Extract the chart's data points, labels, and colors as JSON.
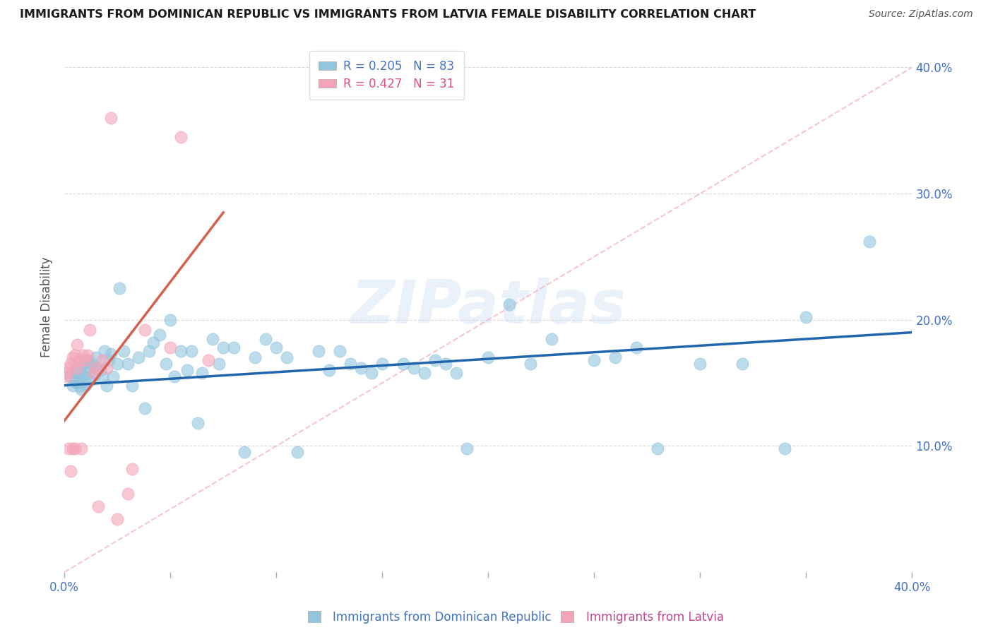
{
  "title": "IMMIGRANTS FROM DOMINICAN REPUBLIC VS IMMIGRANTS FROM LATVIA FEMALE DISABILITY CORRELATION CHART",
  "source": "Source: ZipAtlas.com",
  "ylabel": "Female Disability",
  "xlim": [
    0.0,
    0.4
  ],
  "ylim": [
    0.0,
    0.42
  ],
  "blue_color": "#92c5de",
  "pink_color": "#f4a4b8",
  "blue_line_color": "#2166ac",
  "pink_line_color": "#d6604d",
  "diag_line_color": "#f4b8c0",
  "r_blue": 0.205,
  "n_blue": 83,
  "r_pink": 0.427,
  "n_pink": 31,
  "legend_label_blue": "Immigrants from Dominican Republic",
  "legend_label_pink": "Immigrants from Latvia",
  "legend_R_blue_color": "#4472c4",
  "legend_N_blue_color": "#e05858",
  "legend_R_pink_color": "#e05080",
  "legend_N_pink_color": "#e05858",
  "blue_scatter_x": [
    0.003,
    0.004,
    0.005,
    0.005,
    0.006,
    0.006,
    0.007,
    0.007,
    0.008,
    0.008,
    0.009,
    0.009,
    0.01,
    0.01,
    0.011,
    0.012,
    0.012,
    0.013,
    0.014,
    0.015,
    0.016,
    0.017,
    0.018,
    0.019,
    0.02,
    0.021,
    0.022,
    0.023,
    0.025,
    0.026,
    0.028,
    0.03,
    0.032,
    0.035,
    0.038,
    0.04,
    0.042,
    0.045,
    0.048,
    0.05,
    0.052,
    0.055,
    0.058,
    0.06,
    0.063,
    0.065,
    0.07,
    0.073,
    0.075,
    0.08,
    0.085,
    0.09,
    0.095,
    0.1,
    0.105,
    0.11,
    0.12,
    0.125,
    0.13,
    0.135,
    0.14,
    0.145,
    0.15,
    0.16,
    0.165,
    0.17,
    0.175,
    0.18,
    0.185,
    0.19,
    0.2,
    0.21,
    0.22,
    0.23,
    0.25,
    0.26,
    0.27,
    0.28,
    0.3,
    0.32,
    0.34,
    0.35,
    0.38
  ],
  "blue_scatter_y": [
    0.155,
    0.148,
    0.16,
    0.152,
    0.156,
    0.15,
    0.162,
    0.148,
    0.155,
    0.145,
    0.165,
    0.155,
    0.158,
    0.148,
    0.168,
    0.162,
    0.152,
    0.165,
    0.155,
    0.17,
    0.162,
    0.16,
    0.155,
    0.175,
    0.148,
    0.168,
    0.173,
    0.155,
    0.165,
    0.225,
    0.175,
    0.165,
    0.148,
    0.17,
    0.13,
    0.175,
    0.182,
    0.188,
    0.165,
    0.2,
    0.155,
    0.175,
    0.16,
    0.175,
    0.118,
    0.158,
    0.185,
    0.165,
    0.178,
    0.178,
    0.095,
    0.17,
    0.185,
    0.178,
    0.17,
    0.095,
    0.175,
    0.16,
    0.175,
    0.165,
    0.162,
    0.158,
    0.165,
    0.165,
    0.162,
    0.158,
    0.168,
    0.165,
    0.158,
    0.098,
    0.17,
    0.212,
    0.165,
    0.185,
    0.168,
    0.17,
    0.178,
    0.098,
    0.165,
    0.165,
    0.098,
    0.202,
    0.262
  ],
  "pink_scatter_x": [
    0.001,
    0.001,
    0.002,
    0.002,
    0.003,
    0.003,
    0.004,
    0.004,
    0.005,
    0.005,
    0.006,
    0.006,
    0.007,
    0.008,
    0.009,
    0.01,
    0.011,
    0.012,
    0.014,
    0.015,
    0.016,
    0.018,
    0.02,
    0.022,
    0.025,
    0.03,
    0.032,
    0.038,
    0.05,
    0.055,
    0.068
  ],
  "pink_scatter_y": [
    0.155,
    0.158,
    0.162,
    0.098,
    0.165,
    0.08,
    0.17,
    0.098,
    0.172,
    0.098,
    0.18,
    0.162,
    0.168,
    0.098,
    0.172,
    0.168,
    0.172,
    0.192,
    0.158,
    0.162,
    0.052,
    0.168,
    0.162,
    0.36,
    0.042,
    0.062,
    0.082,
    0.192,
    0.178,
    0.345,
    0.168
  ],
  "pink_trend_x": [
    0.0,
    0.075
  ],
  "pink_trend_y": [
    0.12,
    0.285
  ],
  "blue_trend_x": [
    0.0,
    0.4
  ],
  "blue_trend_y": [
    0.148,
    0.19
  ],
  "watermark": "ZIPatlas",
  "background_color": "#ffffff",
  "grid_color": "#d0d0d0"
}
